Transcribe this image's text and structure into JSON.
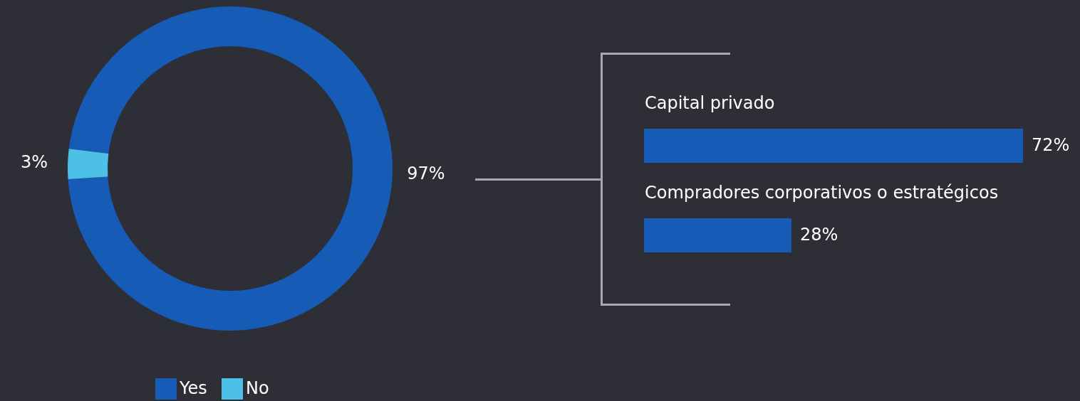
{
  "chart_data": [
    {
      "type": "donut",
      "categories": [
        "Yes",
        "No"
      ],
      "values": [
        97,
        3
      ],
      "colors": [
        "#165bb5",
        "#4dc0e8"
      ],
      "value_labels": [
        "97%",
        "3%"
      ],
      "legend": "bottom"
    },
    {
      "type": "bar",
      "orientation": "horizontal",
      "categories": [
        "Capital privado",
        "Compradores corporativos o estratégicos"
      ],
      "values": [
        72,
        28
      ],
      "color": "#165bb5",
      "value_labels": [
        "72%",
        "28%"
      ]
    }
  ]
}
